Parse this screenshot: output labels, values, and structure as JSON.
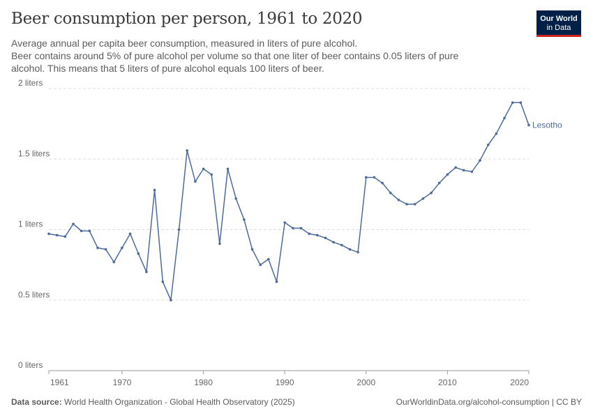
{
  "header": {
    "title": "Beer consumption per person, 1961 to 2020",
    "subtitle_line1": "Average annual per capita beer consumption, measured in liters of pure alcohol.",
    "subtitle_line2": "Beer contains around 5% of pure alcohol per volume so that one liter of beer contains 0.05 liters of pure",
    "subtitle_line3": "alcohol. This means that 5 liters of pure alcohol equals 100 liters of beer."
  },
  "logo": {
    "line1": "Our World",
    "line2": "in Data"
  },
  "footer": {
    "source_label": "Data source:",
    "source_text": "World Health Organization - Global Health Observatory (2025)",
    "url": "OurWorldinData.org/alcohol-consumption",
    "license": "| CC BY"
  },
  "colors": {
    "series": "#4c6a9c",
    "grid": "#dddddd",
    "logo_bg": "#002147",
    "logo_accent": "#ce261e"
  },
  "chart_data": {
    "type": "line",
    "title": "Beer consumption per person, 1961 to 2020",
    "xlabel": "",
    "ylabel": "",
    "xlim": [
      1961,
      2020
    ],
    "ylim": [
      0,
      2
    ],
    "x_ticks": [
      1961,
      1970,
      1980,
      1990,
      2000,
      2010,
      2020
    ],
    "y_ticks": [
      {
        "value": 0,
        "label": "0 liters"
      },
      {
        "value": 0.5,
        "label": "0.5 liters"
      },
      {
        "value": 1,
        "label": "1 liters"
      },
      {
        "value": 1.5,
        "label": "1.5 liters"
      },
      {
        "value": 2,
        "label": "2 liters"
      }
    ],
    "grid": "horizontal dashed",
    "series": [
      {
        "name": "Lesotho",
        "x": [
          1961,
          1962,
          1963,
          1964,
          1965,
          1966,
          1967,
          1968,
          1969,
          1970,
          1971,
          1972,
          1973,
          1974,
          1975,
          1976,
          1977,
          1978,
          1979,
          1980,
          1981,
          1982,
          1983,
          1984,
          1985,
          1986,
          1987,
          1988,
          1989,
          1990,
          1991,
          1992,
          1993,
          1994,
          1995,
          1996,
          1997,
          1998,
          1999,
          2000,
          2001,
          2002,
          2003,
          2004,
          2005,
          2006,
          2007,
          2008,
          2009,
          2010,
          2011,
          2012,
          2013,
          2014,
          2015,
          2016,
          2017,
          2018,
          2019,
          2020
        ],
        "values": [
          0.97,
          0.96,
          0.95,
          1.04,
          0.99,
          0.99,
          0.87,
          0.86,
          0.77,
          0.87,
          0.97,
          0.83,
          0.7,
          1.28,
          0.63,
          0.5,
          1.0,
          1.56,
          1.34,
          1.43,
          1.39,
          0.9,
          1.43,
          1.22,
          1.07,
          0.86,
          0.75,
          0.79,
          0.63,
          1.05,
          1.01,
          1.01,
          0.97,
          0.96,
          0.94,
          0.91,
          0.89,
          0.86,
          0.84,
          1.37,
          1.37,
          1.33,
          1.26,
          1.21,
          1.18,
          1.18,
          1.22,
          1.26,
          1.33,
          1.39,
          1.44,
          1.42,
          1.41,
          1.49,
          1.6,
          1.68,
          1.79,
          1.9,
          1.9,
          1.74
        ]
      }
    ]
  }
}
